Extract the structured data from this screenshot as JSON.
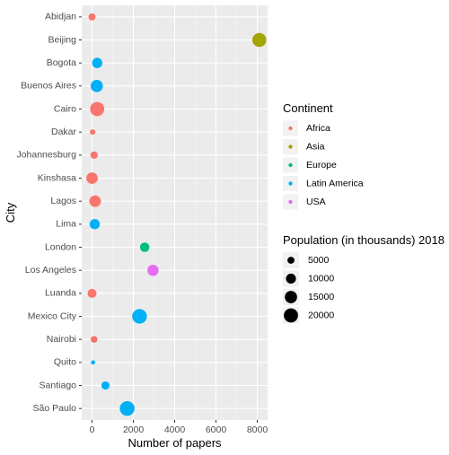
{
  "chart_data": {
    "type": "scatter",
    "title": "",
    "xlabel": "Number of papers",
    "ylabel": "City",
    "xlim": [
      -500,
      8500
    ],
    "x_ticks": [
      0,
      2000,
      4000,
      6000,
      8000
    ],
    "grid": true,
    "legend_position": "right",
    "color_legend": {
      "title": "Continent",
      "entries": [
        {
          "name": "Africa",
          "color": "#F8766D"
        },
        {
          "name": "Asia",
          "color": "#A3A500"
        },
        {
          "name": "Europe",
          "color": "#00BF7D"
        },
        {
          "name": "Latin America",
          "color": "#00B0F6"
        },
        {
          "name": "USA",
          "color": "#E76BF3"
        }
      ]
    },
    "size_legend": {
      "title": "Population (in thousands) 2018",
      "values": [
        5000,
        10000,
        15000,
        20000
      ]
    },
    "points": [
      {
        "city": "Abidjan",
        "papers": 0,
        "continent": "Africa",
        "population": 5000
      },
      {
        "city": "Beijing",
        "papers": 8100,
        "continent": "Asia",
        "population": 19600
      },
      {
        "city": "Bogota",
        "papers": 250,
        "continent": "Latin America",
        "population": 10600
      },
      {
        "city": "Buenos Aires",
        "papers": 230,
        "continent": "Latin America",
        "population": 15000
      },
      {
        "city": "Cairo",
        "papers": 250,
        "continent": "Africa",
        "population": 20100
      },
      {
        "city": "Dakar",
        "papers": 30,
        "continent": "Africa",
        "population": 3000
      },
      {
        "city": "Johannesburg",
        "papers": 100,
        "continent": "Africa",
        "population": 5500
      },
      {
        "city": "Kinshasa",
        "papers": 0,
        "continent": "Africa",
        "population": 13200
      },
      {
        "city": "Lagos",
        "papers": 150,
        "continent": "Africa",
        "population": 13500
      },
      {
        "city": "Lima",
        "papers": 130,
        "continent": "Latin America",
        "population": 10400
      },
      {
        "city": "London",
        "papers": 2550,
        "continent": "Europe",
        "population": 9000
      },
      {
        "city": "Los Angeles",
        "papers": 2950,
        "continent": "USA",
        "population": 12500
      },
      {
        "city": "Luanda",
        "papers": 0,
        "continent": "Africa",
        "population": 8000
      },
      {
        "city": "Mexico City",
        "papers": 2300,
        "continent": "Latin America",
        "population": 21600
      },
      {
        "city": "Nairobi",
        "papers": 100,
        "continent": "Africa",
        "population": 4700
      },
      {
        "city": "Quito",
        "papers": 50,
        "continent": "Latin America",
        "population": 1800
      },
      {
        "city": "Santiago",
        "papers": 650,
        "continent": "Latin America",
        "population": 6700
      },
      {
        "city": "São Paulo",
        "papers": 1700,
        "continent": "Latin America",
        "population": 21700
      }
    ]
  }
}
